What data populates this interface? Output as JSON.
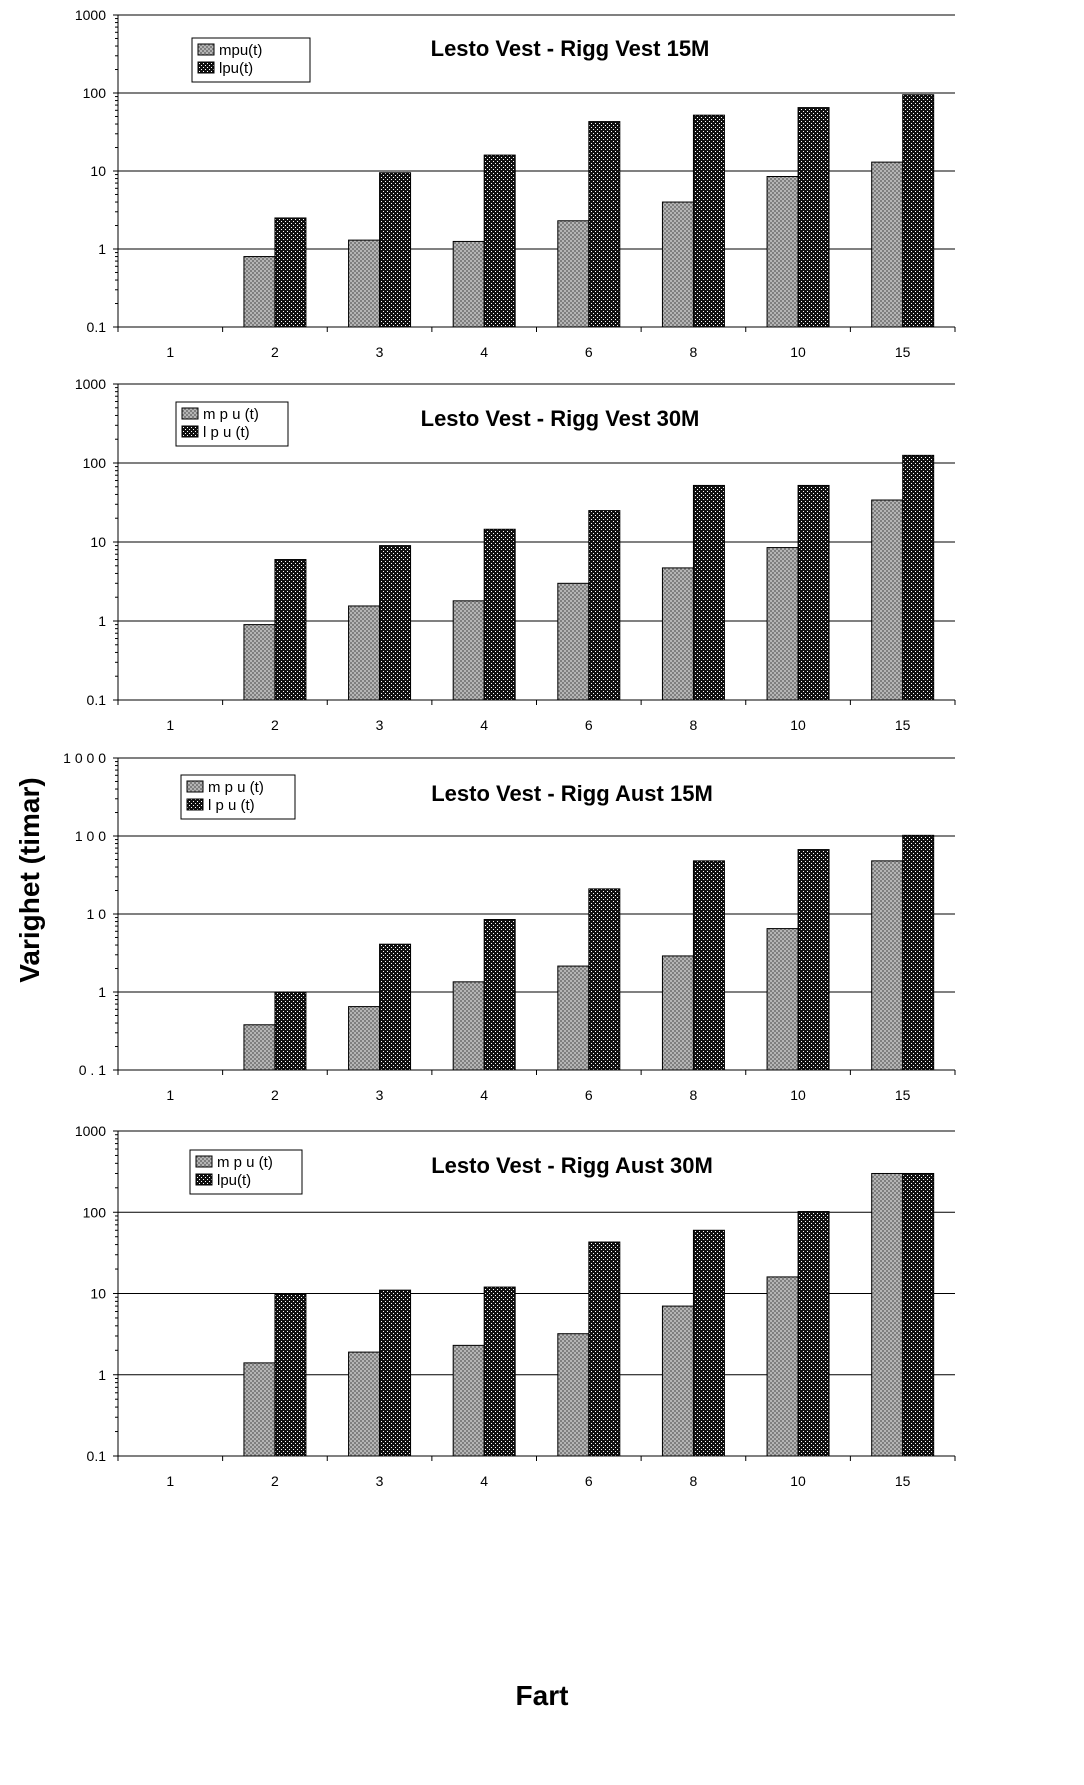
{
  "figure": {
    "ylabel": "Varighet (timar)",
    "xlabel": "Fart"
  },
  "colors": {
    "mpu_fill": "#a8a8a8",
    "lpu_fill": "#1a1a1a",
    "axis": "#000000",
    "grid": "#000000",
    "background": "#ffffff"
  },
  "chart_data": [
    {
      "type": "bar",
      "title": "Lesto Vest - Rigg Vest 15M",
      "categories": [
        "1",
        "2",
        "3",
        "4",
        "6",
        "8",
        "10",
        "15"
      ],
      "yscale": "log",
      "ylim": [
        0.1,
        1000
      ],
      "yticks": [
        "0.1",
        "1",
        "10",
        "100",
        "1000"
      ],
      "grid": "horizontal",
      "legend": "top-left",
      "series": [
        {
          "name": "mpu(t)",
          "values": [
            null,
            0.8,
            1.3,
            1.25,
            2.3,
            4,
            8.5,
            13
          ]
        },
        {
          "name": "lpu(t)",
          "values": [
            null,
            2.5,
            9.5,
            16,
            43,
            52,
            65,
            95
          ]
        }
      ]
    },
    {
      "type": "bar",
      "title": "Lesto Vest - Rigg Vest  30M",
      "categories": [
        "1",
        "2",
        "3",
        "4",
        "6",
        "8",
        "10",
        "15"
      ],
      "yscale": "log",
      "ylim": [
        0.1,
        1000
      ],
      "yticks": [
        "0.1",
        "1",
        "10",
        "100",
        "1000"
      ],
      "grid": "horizontal",
      "legend": "top-left",
      "series": [
        {
          "name": "m p u (t)",
          "values": [
            null,
            0.9,
            1.55,
            1.8,
            3,
            4.7,
            8.5,
            34
          ]
        },
        {
          "name": "l p u (t)",
          "values": [
            null,
            6,
            9,
            14.5,
            25,
            52,
            52,
            125
          ]
        }
      ]
    },
    {
      "type": "bar",
      "title": "Lesto Vest - Rigg Aust 15M",
      "categories": [
        "1",
        "2",
        "3",
        "4",
        "6",
        "8",
        "10",
        "15"
      ],
      "yscale": "log",
      "ylim": [
        0.1,
        1000
      ],
      "yticks": [
        "0 . 1",
        "1",
        "1 0",
        "1 0 0",
        "1 0 0 0"
      ],
      "grid": "horizontal",
      "legend": "top-left",
      "series": [
        {
          "name": "m p u (t)",
          "values": [
            null,
            0.38,
            0.65,
            1.35,
            2.15,
            2.9,
            6.5,
            48
          ]
        },
        {
          "name": "l p u (t)",
          "values": [
            null,
            1,
            4.1,
            8.5,
            21,
            48,
            67,
            102
          ]
        }
      ]
    },
    {
      "type": "bar",
      "title": "Lesto Vest - Rigg Aust 30M",
      "categories": [
        "1",
        "2",
        "3",
        "4",
        "6",
        "8",
        "10",
        "15"
      ],
      "yscale": "log",
      "ylim": [
        0.1,
        1000
      ],
      "yticks": [
        "0.1",
        "1",
        "10",
        "100",
        "1000"
      ],
      "grid": "horizontal",
      "legend": "top-left",
      "series": [
        {
          "name": "m p u (t)",
          "values": [
            null,
            1.4,
            1.9,
            2.3,
            3.2,
            7,
            16,
            300
          ]
        },
        {
          "name": "lpu(t)",
          "values": [
            null,
            9.8,
            11,
            12,
            43,
            60,
            102,
            300
          ]
        }
      ]
    }
  ]
}
